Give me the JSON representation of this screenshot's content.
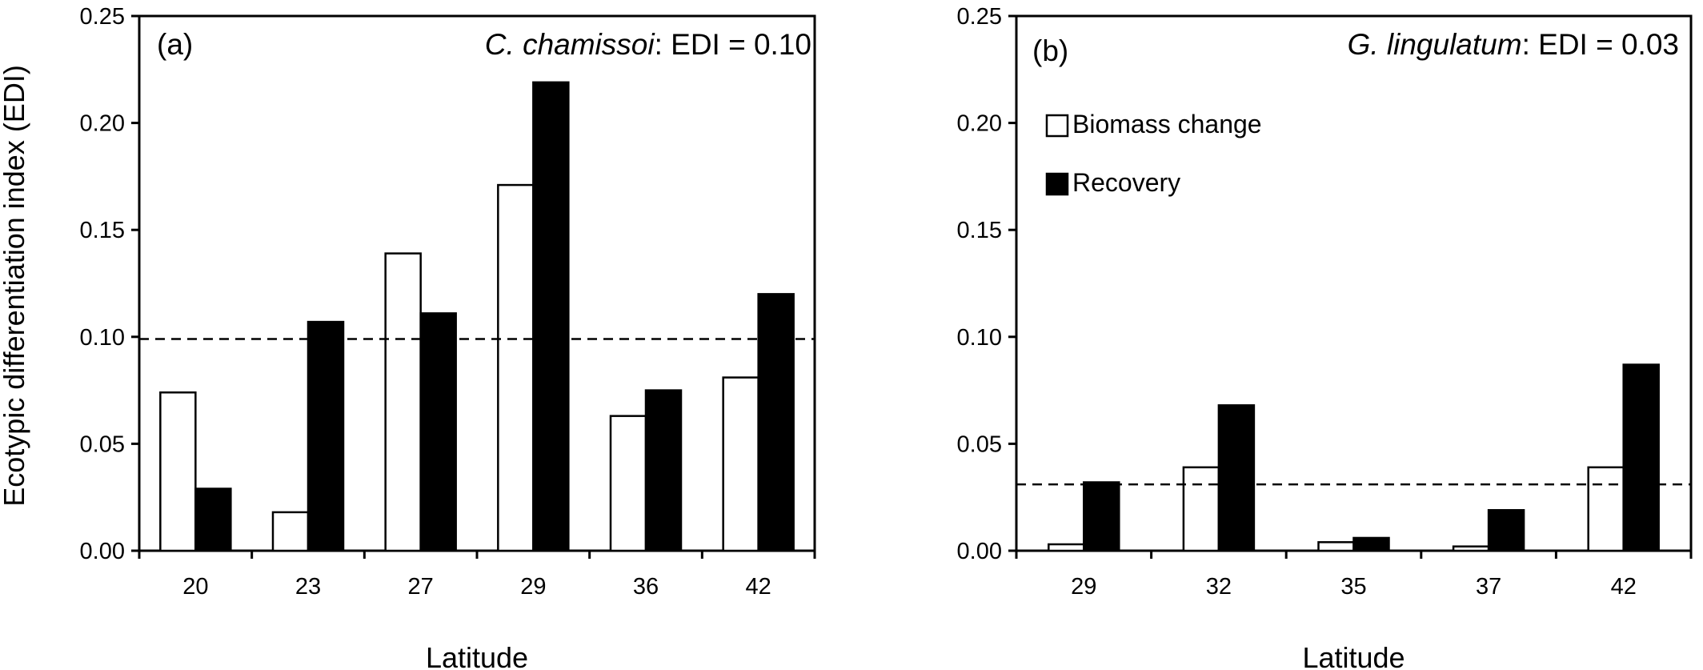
{
  "figure": {
    "shared_ylabel": "Ecotypic differentiation index (EDI)"
  },
  "legend": {
    "items": [
      {
        "label": "Biomass change",
        "fill": "#ffffff"
      },
      {
        "label": "Recovery",
        "fill": "#000000"
      }
    ]
  },
  "colors": {
    "axis": "#000000",
    "biomass_change": "#ffffff",
    "recovery": "#000000",
    "reference_line": "#000000"
  },
  "chart_data": [
    {
      "type": "bar",
      "panel": "(a)",
      "species": "C. chamissoi",
      "edi_text": ": EDI = 0.10",
      "xlabel": "Latitude",
      "ylabel": "Ecotypic differentiation index (EDI)",
      "categories": [
        "20",
        "23",
        "27",
        "29",
        "36",
        "42"
      ],
      "series": [
        {
          "name": "Biomass change",
          "values": [
            0.074,
            0.018,
            0.139,
            0.171,
            0.063,
            0.081
          ]
        },
        {
          "name": "Recovery",
          "values": [
            0.029,
            0.107,
            0.111,
            0.219,
            0.075,
            0.12
          ]
        }
      ],
      "reference_line": 0.099,
      "ylim": [
        0,
        0.25
      ],
      "yticks": [
        "0.00",
        "0.05",
        "0.10",
        "0.15",
        "0.20",
        "0.25"
      ],
      "grid": false,
      "legend": false
    },
    {
      "type": "bar",
      "panel": "(b)",
      "species": "G. lingulatum",
      "edi_text": ": EDI = 0.03",
      "xlabel": "Latitude",
      "ylabel": "",
      "categories": [
        "29",
        "32",
        "35",
        "37",
        "42"
      ],
      "series": [
        {
          "name": "Biomass change",
          "values": [
            0.003,
            0.039,
            0.004,
            0.002,
            0.039
          ]
        },
        {
          "name": "Recovery",
          "values": [
            0.032,
            0.068,
            0.006,
            0.019,
            0.087
          ]
        }
      ],
      "reference_line": 0.031,
      "ylim": [
        0,
        0.25
      ],
      "yticks": [
        "0.00",
        "0.05",
        "0.10",
        "0.15",
        "0.20",
        "0.25"
      ],
      "grid": false,
      "legend": "upper-left"
    }
  ]
}
